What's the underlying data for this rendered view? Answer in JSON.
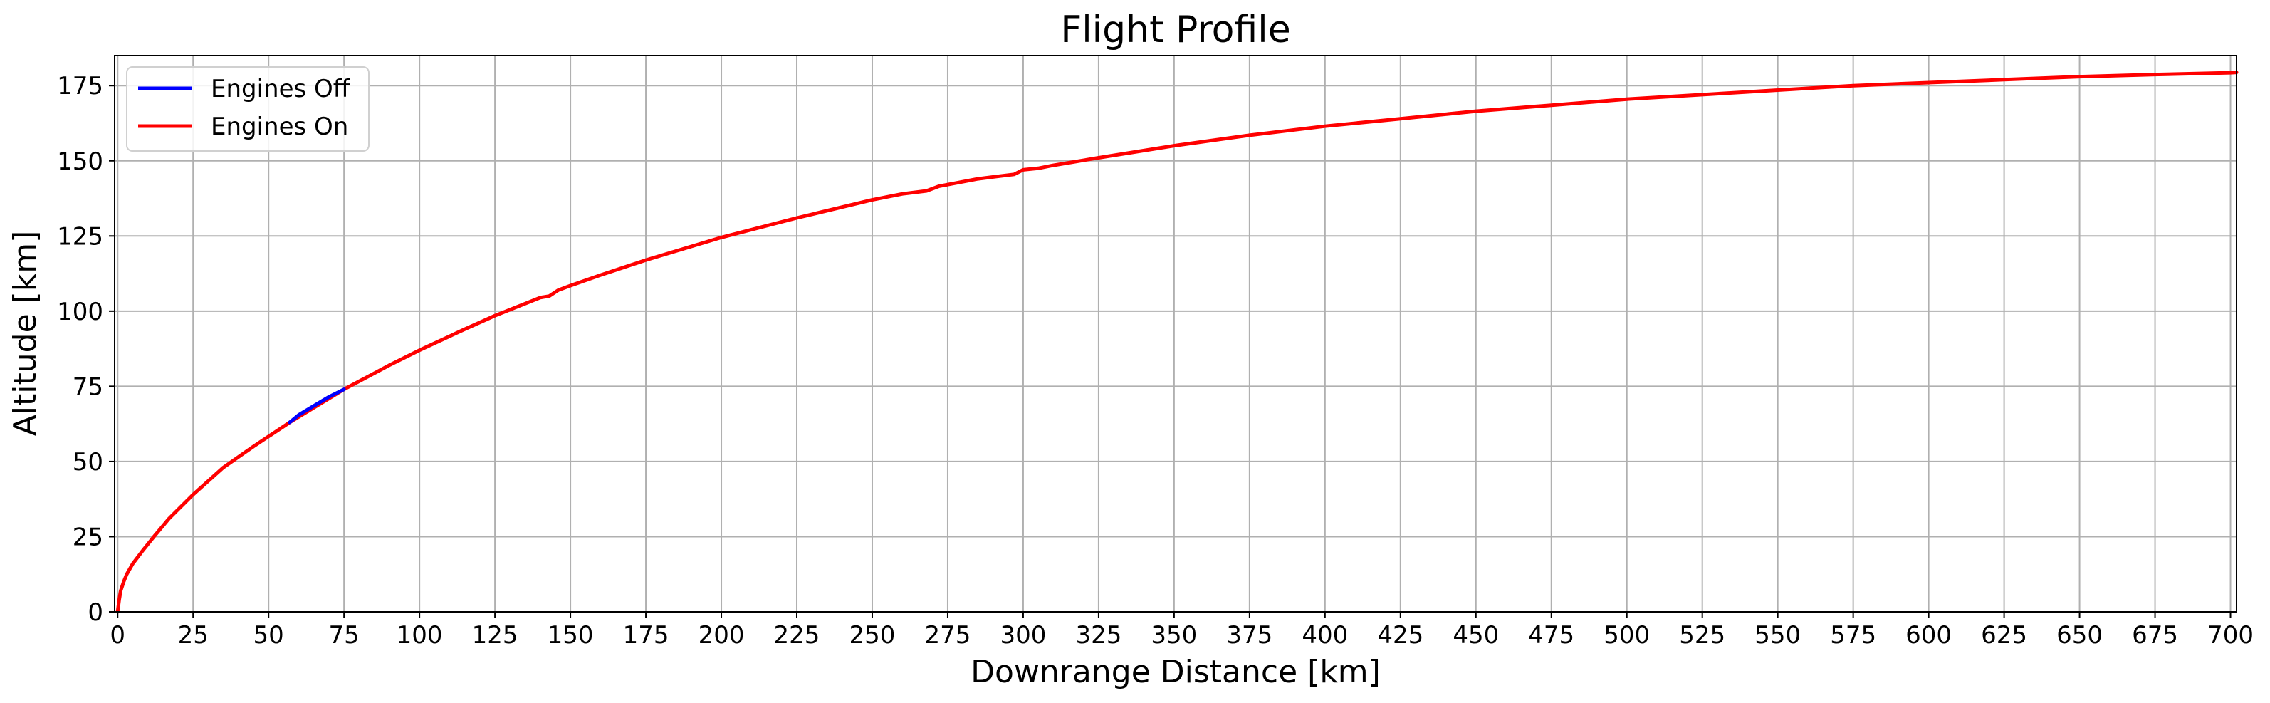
{
  "chart_data": {
    "type": "line",
    "title": "Flight Profile",
    "xlabel": "Downrange Distance [km]",
    "ylabel": "Altitude [km]",
    "xlim": [
      -1,
      702
    ],
    "ylim": [
      0,
      185
    ],
    "xticks": [
      0,
      25,
      50,
      75,
      100,
      125,
      150,
      175,
      200,
      225,
      250,
      275,
      300,
      325,
      350,
      375,
      400,
      425,
      450,
      475,
      500,
      525,
      550,
      575,
      600,
      625,
      650,
      675,
      700
    ],
    "yticks": [
      0,
      25,
      50,
      75,
      100,
      125,
      150,
      175
    ],
    "grid": true,
    "legend": "top-left",
    "series": [
      {
        "name": "Engines Off",
        "color": "#0000ff",
        "points": [
          [
            57,
            63
          ],
          [
            60,
            65.5
          ],
          [
            65,
            68.5
          ],
          [
            70,
            71.5
          ],
          [
            75,
            74
          ]
        ]
      },
      {
        "name": "Engines On",
        "color": "#ff0000",
        "points": [
          [
            0,
            0
          ],
          [
            0.5,
            4
          ],
          [
            1,
            7
          ],
          [
            2,
            10
          ],
          [
            3,
            12.5
          ],
          [
            5,
            16
          ],
          [
            8,
            20
          ],
          [
            12,
            25
          ],
          [
            17,
            31
          ],
          [
            25,
            39
          ],
          [
            35,
            48
          ],
          [
            45,
            55
          ],
          [
            57,
            63
          ],
          [
            57,
            63
          ],
          [
            75,
            74
          ],
          [
            90,
            82
          ],
          [
            100,
            87
          ],
          [
            115,
            94
          ],
          [
            125,
            98.5
          ],
          [
            135,
            102.5
          ],
          [
            140,
            104.5
          ],
          [
            143,
            105
          ],
          [
            146,
            107
          ],
          [
            150,
            108.5
          ],
          [
            160,
            112
          ],
          [
            175,
            117
          ],
          [
            200,
            124.5
          ],
          [
            225,
            131
          ],
          [
            250,
            137
          ],
          [
            260,
            139
          ],
          [
            268,
            140
          ],
          [
            272,
            141.5
          ],
          [
            285,
            144
          ],
          [
            297,
            145.5
          ],
          [
            300,
            147
          ],
          [
            305,
            147.5
          ],
          [
            310,
            148.5
          ],
          [
            325,
            151
          ],
          [
            350,
            155
          ],
          [
            375,
            158.5
          ],
          [
            400,
            161.5
          ],
          [
            425,
            164
          ],
          [
            450,
            166.5
          ],
          [
            475,
            168.5
          ],
          [
            500,
            170.5
          ],
          [
            525,
            172
          ],
          [
            550,
            173.5
          ],
          [
            575,
            175
          ],
          [
            600,
            176
          ],
          [
            625,
            177
          ],
          [
            650,
            178
          ],
          [
            675,
            178.7
          ],
          [
            700,
            179.3
          ],
          [
            702,
            179.4
          ]
        ]
      }
    ]
  }
}
